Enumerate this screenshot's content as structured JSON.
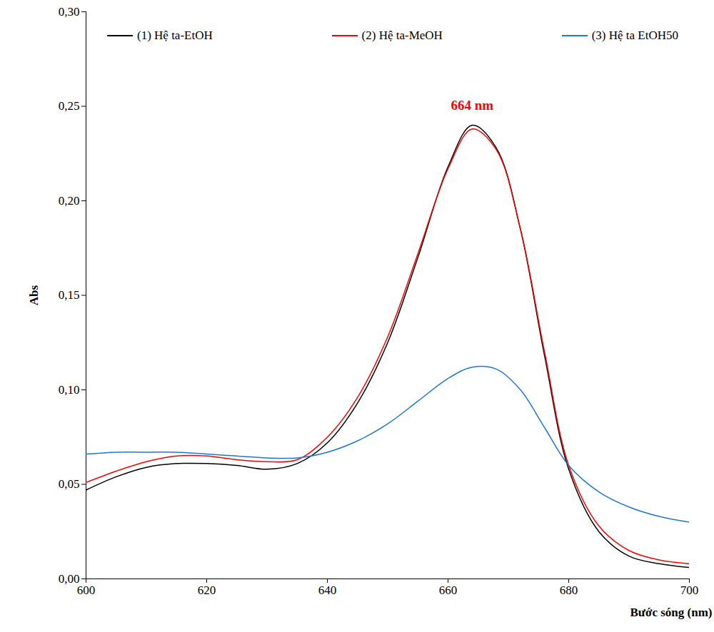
{
  "chart_data": {
    "type": "line",
    "x_label": "Bước sóng (nm)",
    "y_label": "Abs",
    "x": [
      600,
      605,
      610,
      615,
      620,
      625,
      630,
      635,
      640,
      645,
      650,
      655,
      660,
      664,
      668,
      672,
      676,
      680,
      685,
      690,
      695,
      700
    ],
    "series": [
      {
        "name": "(1) Hệ ta-EtOH",
        "color": "#000000",
        "values": [
          0.047,
          0.054,
          0.059,
          0.061,
          0.061,
          0.06,
          0.058,
          0.061,
          0.072,
          0.093,
          0.125,
          0.17,
          0.218,
          0.24,
          0.228,
          0.185,
          0.118,
          0.058,
          0.025,
          0.012,
          0.008,
          0.006
        ]
      },
      {
        "name": "(2) Hệ ta-MeOH",
        "color": "#ff0000",
        "values": [
          0.051,
          0.057,
          0.062,
          0.065,
          0.065,
          0.063,
          0.062,
          0.063,
          0.075,
          0.096,
          0.128,
          0.172,
          0.217,
          0.238,
          0.227,
          0.185,
          0.12,
          0.06,
          0.028,
          0.015,
          0.01,
          0.008
        ]
      },
      {
        "name": "(3) Hệ ta EtOH50",
        "color": "#1f77d4",
        "values": [
          0.066,
          0.067,
          0.067,
          0.067,
          0.066,
          0.065,
          0.064,
          0.064,
          0.067,
          0.073,
          0.082,
          0.094,
          0.106,
          0.112,
          0.111,
          0.1,
          0.08,
          0.06,
          0.046,
          0.038,
          0.033,
          0.03
        ]
      }
    ],
    "annotations": [
      {
        "text": "664 nm",
        "x": 664,
        "y": 0.248,
        "color": "#ff0000"
      }
    ],
    "xlim": [
      600,
      700
    ],
    "xticks": [
      600,
      620,
      640,
      660,
      680,
      700
    ],
    "ylim": [
      0,
      0.3
    ],
    "yticks": [
      {
        "value": 0,
        "label": "0,00"
      },
      {
        "value": 0.05,
        "label": "0,05"
      },
      {
        "value": 0.1,
        "label": "0,10"
      },
      {
        "value": 0.15,
        "label": "0,15"
      },
      {
        "value": 0.2,
        "label": "0,20"
      },
      {
        "value": 0.25,
        "label": "0,25"
      },
      {
        "value": 0.3,
        "label": "0,30"
      }
    ],
    "legend": "top",
    "grid": false
  }
}
